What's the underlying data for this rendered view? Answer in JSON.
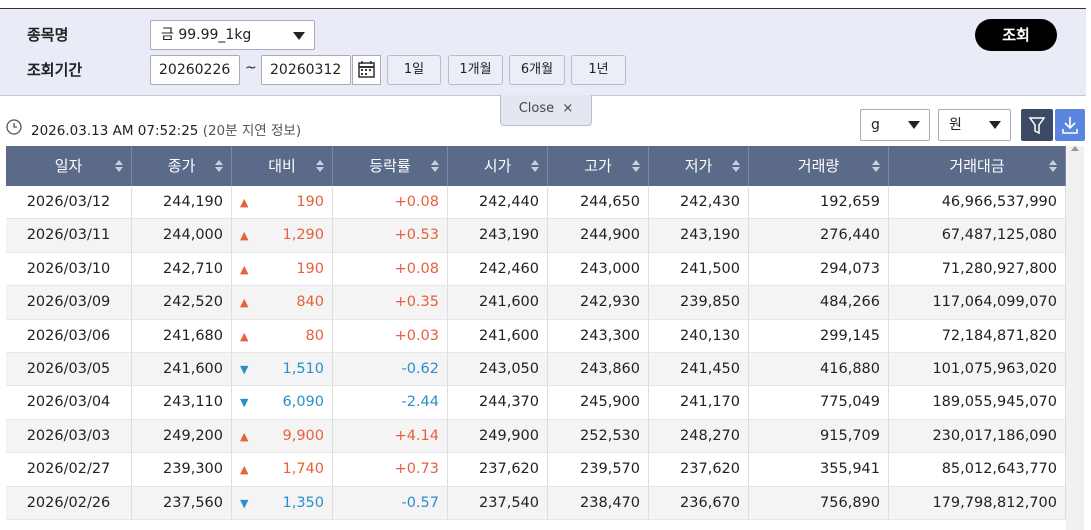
{
  "filter": {
    "item_label": "종목명",
    "item_value": "금 99.99_1kg",
    "period_label": "조회기간",
    "start_date": "20260226",
    "separator": "~",
    "end_date": "20260312",
    "ranges": [
      "1일",
      "1개월",
      "6개월",
      "1년"
    ],
    "search_button": "조회"
  },
  "close_tab": {
    "label": "Close",
    "icon": "×"
  },
  "status": {
    "timestamp": "2026.03.13 AM 07:52:25",
    "note": "(20분 지연 정보)"
  },
  "unit_selects": {
    "weight": "g",
    "currency": "원"
  },
  "table": {
    "columns": [
      "일자",
      "종가",
      "대비",
      "등락률",
      "시가",
      "고가",
      "저가",
      "거래량",
      "거래대금"
    ],
    "rows": [
      [
        "2026/03/12",
        "244,190",
        "▲",
        "190",
        "+0.08",
        "242,440",
        "244,650",
        "242,430",
        "192,659",
        "46,966,537,990"
      ],
      [
        "2026/03/11",
        "244,000",
        "▲",
        "1,290",
        "+0.53",
        "243,190",
        "244,900",
        "243,190",
        "276,440",
        "67,487,125,080"
      ],
      [
        "2026/03/10",
        "242,710",
        "▲",
        "190",
        "+0.08",
        "242,460",
        "243,000",
        "241,500",
        "294,073",
        "71,280,927,800"
      ],
      [
        "2026/03/09",
        "242,520",
        "▲",
        "840",
        "+0.35",
        "241,600",
        "242,930",
        "239,850",
        "484,266",
        "117,064,099,070"
      ],
      [
        "2026/03/06",
        "241,680",
        "▲",
        "80",
        "+0.03",
        "241,600",
        "243,300",
        "240,130",
        "299,145",
        "72,184,871,820"
      ],
      [
        "2026/03/05",
        "241,600",
        "▼",
        "1,510",
        "-0.62",
        "243,050",
        "243,860",
        "241,450",
        "416,880",
        "101,075,963,020"
      ],
      [
        "2026/03/04",
        "243,110",
        "▼",
        "6,090",
        "-2.44",
        "244,370",
        "245,900",
        "241,170",
        "775,049",
        "189,055,945,070"
      ],
      [
        "2026/03/03",
        "249,200",
        "▲",
        "9,900",
        "+4.14",
        "249,900",
        "252,530",
        "248,270",
        "915,709",
        "230,017,186,090"
      ],
      [
        "2026/02/27",
        "239,300",
        "▲",
        "1,740",
        "+0.73",
        "237,620",
        "239,570",
        "237,620",
        "355,941",
        "85,012,643,770"
      ],
      [
        "2026/02/26",
        "237,560",
        "▼",
        "1,350",
        "-0.57",
        "237,540",
        "238,470",
        "236,670",
        "756,890",
        "179,798,812,700"
      ]
    ]
  }
}
